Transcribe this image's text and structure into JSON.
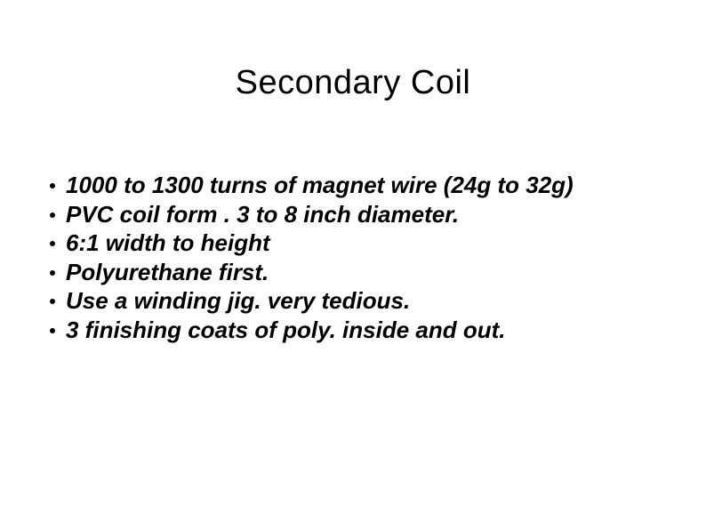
{
  "slide": {
    "title": "Secondary Coil",
    "title_fontsize": 38,
    "title_color": "#000000",
    "background_color": "#ffffff",
    "bullets": [
      {
        "text": "1000 to 1300 turns of magnet wire (24g to 32g)",
        "italic": true
      },
      {
        "text": "PVC coil form . 3 to 8 inch diameter.",
        "italic": true
      },
      {
        "text": "6:1 width to height",
        "italic": true
      },
      {
        "text": "Polyurethane first.",
        "italic": true
      },
      {
        "text": "Use a winding jig. very tedious.",
        "italic": true
      },
      {
        "text": "3 finishing coats of poly. inside and out.",
        "italic": true
      }
    ],
    "bullet_fontsize": 26,
    "bullet_fontweight": "bold",
    "bullet_color": "#000000",
    "bullet_marker_color": "#000000",
    "bullet_marker_size": 6
  }
}
